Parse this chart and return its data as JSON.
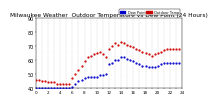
{
  "title": "Milwaukee Weather  Outdoor Temperature vs Dew Point (24 Hours)",
  "title_fontsize": 4.2,
  "background_color": "#ffffff",
  "grid_color": "#cccccc",
  "temp_color": "#cc0000",
  "dew_color": "#0000cc",
  "legend_temp_label": "Outdoor Temp",
  "legend_dew_label": "Dew Point",
  "ylim": [
    40,
    90
  ],
  "xlim": [
    0,
    24
  ],
  "ylabel_fontsize": 3.5,
  "xlabel_fontsize": 3.0,
  "yticks": [
    40,
    50,
    60,
    70,
    80,
    90
  ],
  "xticks": [
    0,
    1,
    2,
    3,
    4,
    5,
    6,
    7,
    8,
    9,
    10,
    11,
    12,
    13,
    14,
    15,
    16,
    17,
    18,
    19,
    20,
    21,
    22,
    23,
    24
  ],
  "temp_x": [
    0,
    0.5,
    1,
    1.5,
    2,
    2.5,
    3,
    3.5,
    4,
    4.5,
    5,
    5.5,
    6,
    6.5,
    7,
    7.5,
    8,
    8.5,
    9,
    9.5,
    10,
    10.5,
    11,
    11.5,
    12,
    12.5,
    13,
    13.5,
    14,
    14.5,
    15,
    15.5,
    16,
    16.5,
    17,
    17.5,
    18,
    18.5,
    19,
    19.5,
    20,
    20.5,
    21,
    21.5,
    22,
    22.5,
    23,
    23.5
  ],
  "temp_y": [
    46,
    46,
    45,
    45,
    44,
    44,
    44,
    43,
    43,
    43,
    43,
    43,
    47,
    50,
    53,
    56,
    59,
    62,
    63,
    64,
    65,
    66,
    64,
    62,
    68,
    70,
    72,
    71,
    73,
    72,
    71,
    70,
    69,
    68,
    67,
    66,
    65,
    64,
    63,
    64,
    65,
    66,
    67,
    68,
    68,
    68,
    68,
    68
  ],
  "dew_x": [
    0,
    0.5,
    1,
    1.5,
    2,
    2.5,
    3,
    3.5,
    4,
    4.5,
    5,
    5.5,
    6,
    6.5,
    7,
    7.5,
    8,
    8.5,
    9,
    9.5,
    10,
    10.5,
    11,
    11.5,
    12,
    12.5,
    13,
    13.5,
    14,
    14.5,
    15,
    15.5,
    16,
    16.5,
    17,
    17.5,
    18,
    18.5,
    19,
    19.5,
    20,
    20.5,
    21,
    21.5,
    22,
    22.5,
    23,
    23.5
  ],
  "dew_y": [
    40,
    40,
    40,
    40,
    40,
    40,
    40,
    40,
    40,
    40,
    40,
    40,
    41,
    43,
    45,
    46,
    47,
    48,
    48,
    48,
    48,
    49,
    49,
    50,
    57,
    58,
    60,
    60,
    62,
    62,
    61,
    60,
    59,
    58,
    57,
    56,
    56,
    55,
    55,
    55,
    56,
    57,
    58,
    58,
    58,
    58,
    58,
    58
  ],
  "legend_bar_temp": "#cc0000",
  "legend_bar_dew": "#0000cc"
}
